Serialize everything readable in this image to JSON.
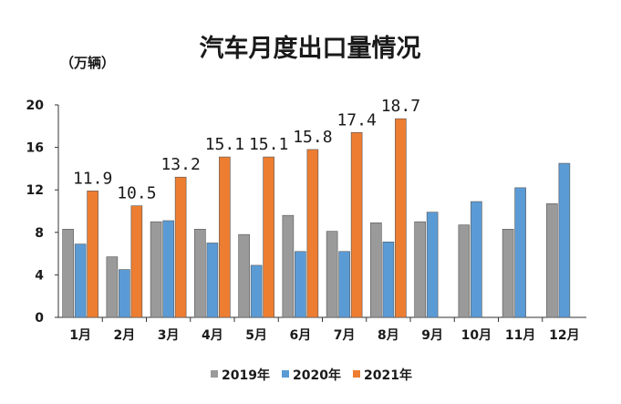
{
  "chart_data": {
    "type": "bar",
    "title": "汽车月度出口量情况",
    "ylabel": "（万辆）",
    "xlabel": "",
    "ylim": [
      0,
      20
    ],
    "yticks": [
      0,
      4,
      8,
      12,
      16,
      20
    ],
    "categories": [
      "1月",
      "2月",
      "3月",
      "4月",
      "5月",
      "6月",
      "7月",
      "8月",
      "9月",
      "10月",
      "11月",
      "12月"
    ],
    "series": [
      {
        "name": "2019年",
        "color": "#9a9a9a",
        "values": [
          8.3,
          5.7,
          9.0,
          8.3,
          7.8,
          9.6,
          8.1,
          8.9,
          9.0,
          8.7,
          8.3,
          10.7
        ]
      },
      {
        "name": "2020年",
        "color": "#5b9bd5",
        "values": [
          6.9,
          4.5,
          9.1,
          7.0,
          4.9,
          6.2,
          6.2,
          7.1,
          9.9,
          10.9,
          12.2,
          14.5
        ]
      },
      {
        "name": "2021年",
        "color": "#ed7d31",
        "values": [
          11.9,
          10.5,
          13.2,
          15.1,
          15.1,
          15.8,
          17.4,
          18.7,
          null,
          null,
          null,
          null
        ]
      }
    ],
    "data_labels": {
      "series": "2021年",
      "labels": [
        "11.9",
        "10.5",
        "13.2",
        "15.1",
        "15.1",
        "15.8",
        "17.4",
        "18.7"
      ]
    },
    "legend_position": "bottom",
    "grid": false
  }
}
